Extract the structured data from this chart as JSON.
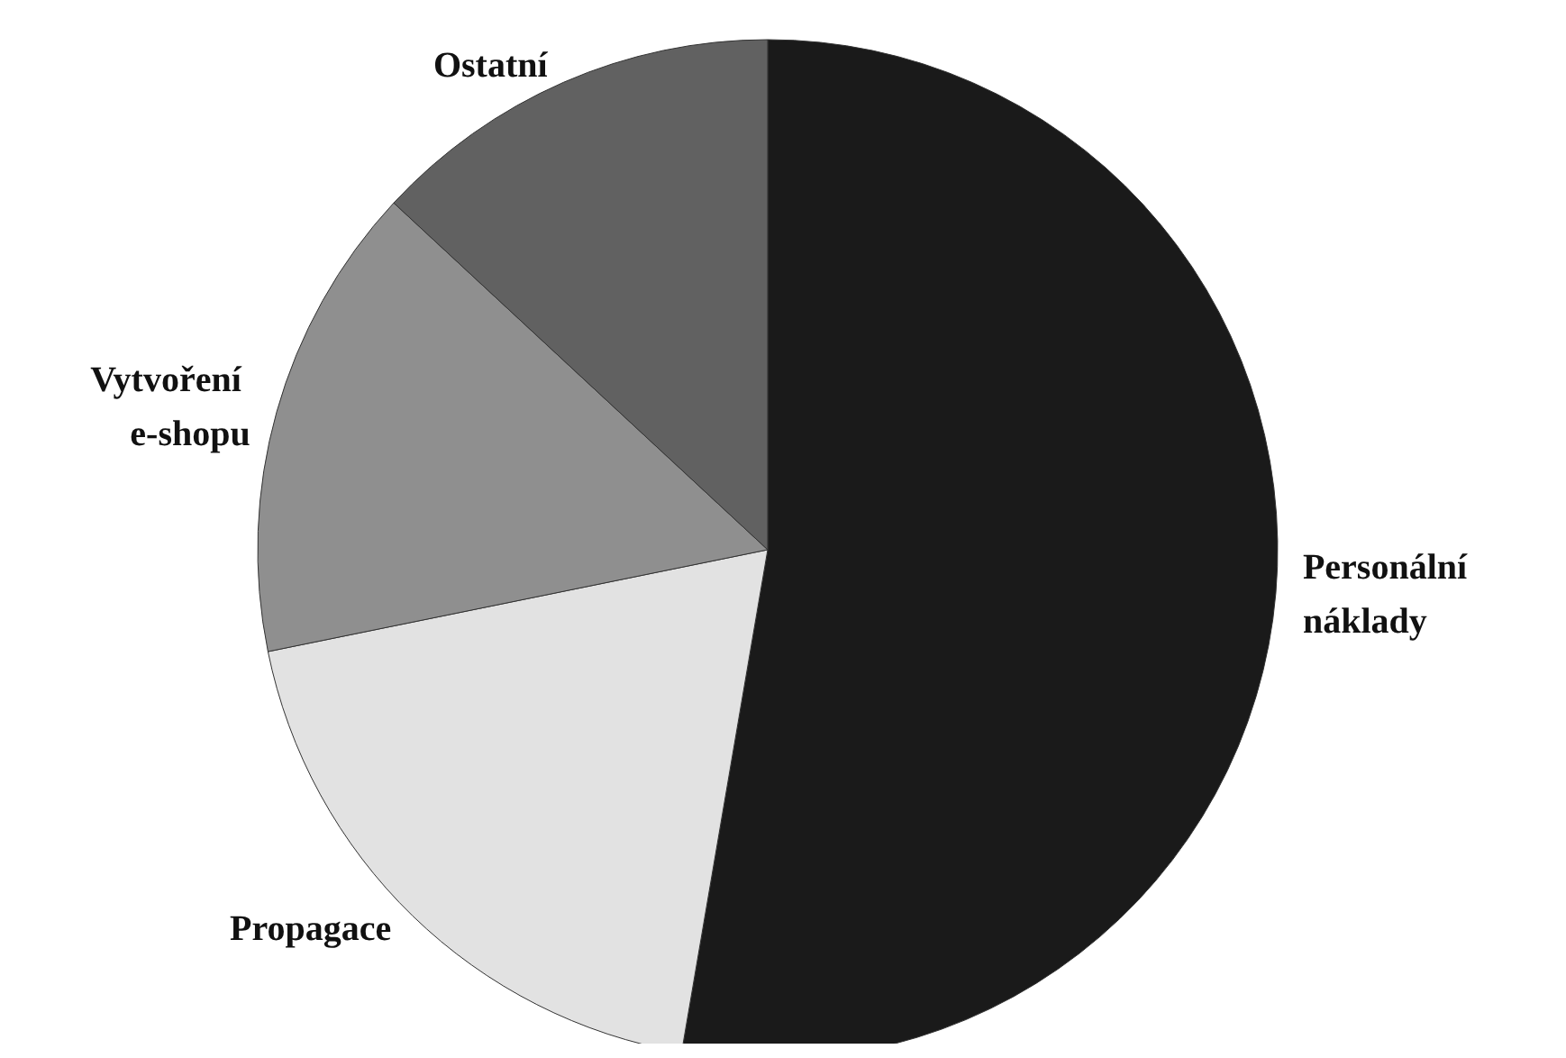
{
  "chart_data": {
    "type": "pie",
    "categories": [
      "Personální náklady",
      "Propagace",
      "Vytvoření e-shopu",
      "Ostatní"
    ],
    "values": [
      52.7,
      19.1,
      15.1,
      13.1
    ],
    "colors": [
      "#1a1a1a",
      "#e2e2e2",
      "#8f8f8f",
      "#616161"
    ],
    "legend": false
  }
}
